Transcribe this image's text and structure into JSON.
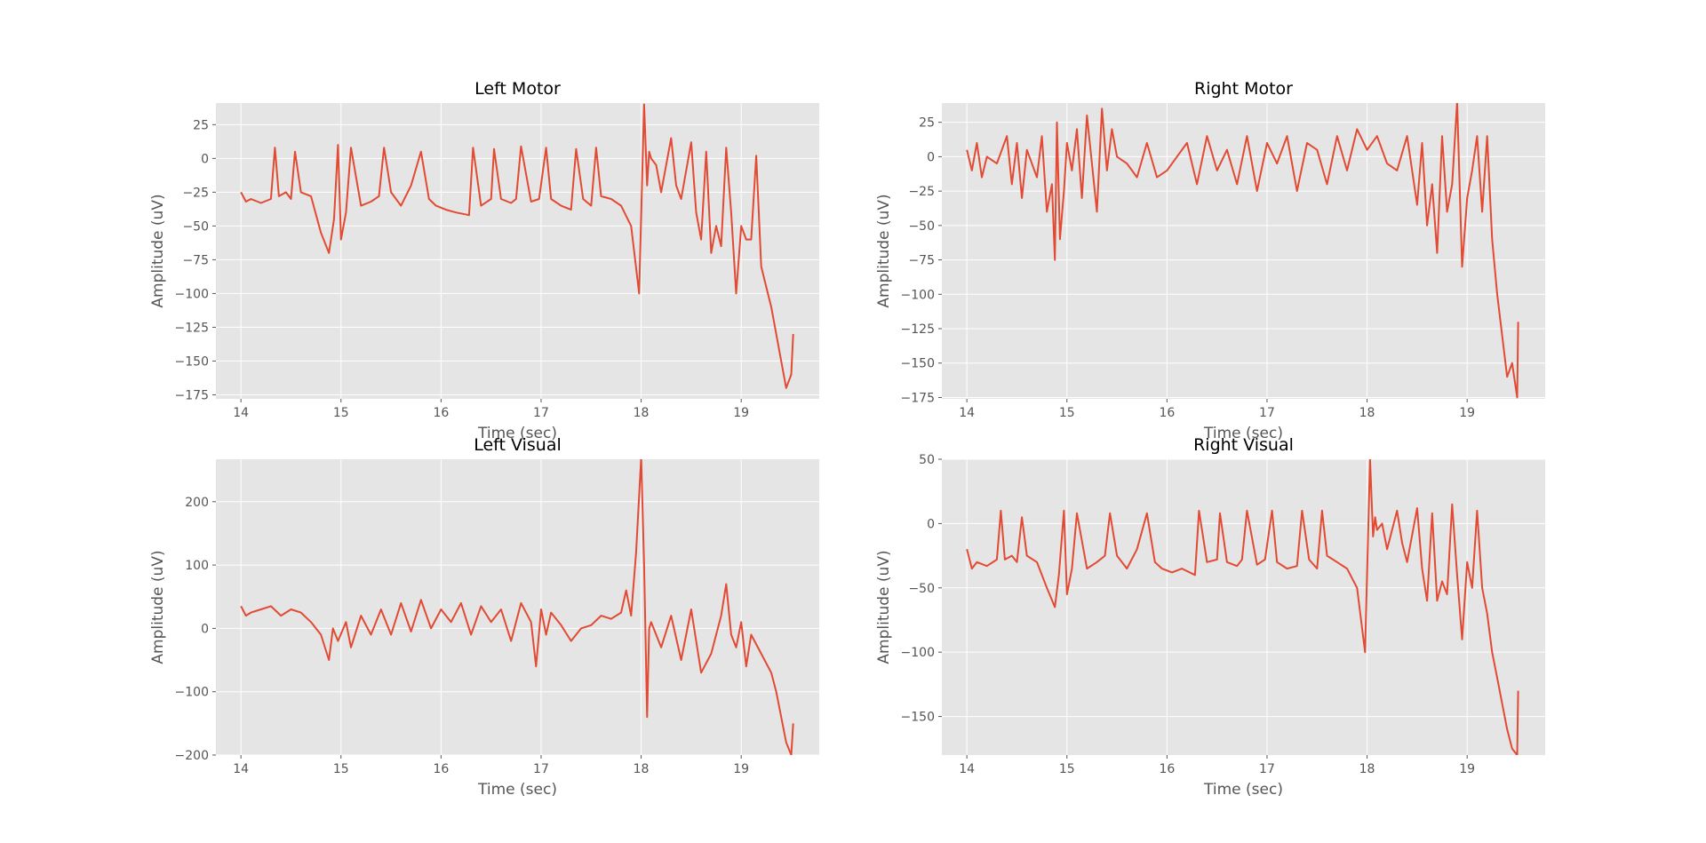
{
  "figure": {
    "background": "#ffffff",
    "axes_facecolor": "#e5e5e5",
    "grid_color": "#ffffff",
    "line_color": "#e24a33",
    "tick_color": "#555555"
  },
  "chart_data": [
    {
      "type": "line",
      "title": "Left Motor",
      "xlabel": "Time (sec)",
      "ylabel": "Amplitude (uV)",
      "xlim": [
        13.75,
        19.78
      ],
      "ylim": [
        -178,
        41
      ],
      "xticks": [
        14,
        15,
        16,
        17,
        18,
        19
      ],
      "yticks": [
        -175,
        -150,
        -125,
        -100,
        -75,
        -50,
        -25,
        0,
        25
      ],
      "grid": true,
      "series": [
        {
          "color": "#e24a33",
          "x": [
            14.0,
            14.05,
            14.1,
            14.2,
            14.3,
            14.34,
            14.38,
            14.45,
            14.5,
            14.54,
            14.6,
            14.7,
            14.8,
            14.88,
            14.93,
            14.97,
            15.0,
            15.05,
            15.1,
            15.2,
            15.3,
            15.38,
            15.43,
            15.5,
            15.6,
            15.7,
            15.8,
            15.88,
            15.95,
            16.05,
            16.15,
            16.28,
            16.32,
            16.4,
            16.5,
            16.53,
            16.6,
            16.7,
            16.75,
            16.8,
            16.9,
            16.98,
            17.05,
            17.1,
            17.2,
            17.3,
            17.35,
            17.42,
            17.5,
            17.55,
            17.6,
            17.7,
            17.8,
            17.9,
            17.98,
            18.03,
            18.06,
            18.08,
            18.1,
            18.15,
            18.2,
            18.3,
            18.35,
            18.4,
            18.5,
            18.55,
            18.6,
            18.65,
            18.7,
            18.75,
            18.8,
            18.85,
            18.9,
            18.95,
            19.0,
            19.05,
            19.1,
            19.15,
            19.2,
            19.25,
            19.3,
            19.35,
            19.4,
            19.45,
            19.5,
            19.52
          ],
          "y": [
            -25,
            -32,
            -30,
            -33,
            -30,
            8,
            -28,
            -25,
            -30,
            5,
            -25,
            -28,
            -55,
            -70,
            -45,
            10,
            -60,
            -40,
            8,
            -35,
            -32,
            -28,
            8,
            -25,
            -35,
            -20,
            5,
            -30,
            -35,
            -38,
            -40,
            -42,
            8,
            -35,
            -30,
            7,
            -30,
            -33,
            -30,
            9,
            -32,
            -30,
            8,
            -30,
            -35,
            -38,
            7,
            -30,
            -35,
            8,
            -28,
            -30,
            -35,
            -50,
            -100,
            40,
            -20,
            5,
            0,
            -5,
            -25,
            15,
            -20,
            -30,
            12,
            -40,
            -60,
            5,
            -70,
            -50,
            -65,
            8,
            -40,
            -100,
            -50,
            -60,
            -60,
            2,
            -80,
            -95,
            -110,
            -130,
            -150,
            -170,
            -160,
            -130
          ]
        }
      ]
    },
    {
      "type": "line",
      "title": "Right Motor",
      "xlabel": "Time (sec)",
      "ylabel": "Amplitude (uV)",
      "xlim": [
        13.75,
        19.78
      ],
      "ylim": [
        -176,
        39
      ],
      "xticks": [
        14,
        15,
        16,
        17,
        18,
        19
      ],
      "yticks": [
        -175,
        -150,
        -125,
        -100,
        -75,
        -50,
        -25,
        0,
        25
      ],
      "grid": true,
      "series": [
        {
          "color": "#e24a33",
          "x": [
            14.0,
            14.05,
            14.1,
            14.15,
            14.2,
            14.3,
            14.4,
            14.45,
            14.5,
            14.55,
            14.6,
            14.7,
            14.75,
            14.8,
            14.85,
            14.88,
            14.9,
            14.93,
            14.97,
            15.0,
            15.05,
            15.1,
            15.15,
            15.2,
            15.3,
            15.35,
            15.4,
            15.45,
            15.5,
            15.6,
            15.7,
            15.8,
            15.9,
            16.0,
            16.1,
            16.2,
            16.3,
            16.4,
            16.5,
            16.6,
            16.7,
            16.8,
            16.9,
            17.0,
            17.1,
            17.2,
            17.3,
            17.4,
            17.5,
            17.6,
            17.7,
            17.8,
            17.9,
            18.0,
            18.1,
            18.2,
            18.3,
            18.4,
            18.5,
            18.55,
            18.6,
            18.65,
            18.7,
            18.75,
            18.8,
            18.85,
            18.9,
            18.95,
            19.0,
            19.05,
            19.1,
            19.15,
            19.2,
            19.25,
            19.3,
            19.35,
            19.4,
            19.45,
            19.5,
            19.51
          ],
          "y": [
            5,
            -10,
            10,
            -15,
            0,
            -5,
            15,
            -20,
            10,
            -30,
            5,
            -15,
            15,
            -40,
            -20,
            -75,
            25,
            -60,
            -25,
            10,
            -10,
            20,
            -30,
            30,
            -40,
            35,
            -10,
            20,
            0,
            -5,
            -15,
            10,
            -15,
            -10,
            0,
            10,
            -20,
            15,
            -10,
            5,
            -20,
            15,
            -25,
            10,
            -5,
            15,
            -25,
            10,
            5,
            -20,
            15,
            -10,
            20,
            5,
            15,
            -5,
            -10,
            15,
            -35,
            10,
            -50,
            -20,
            -70,
            15,
            -40,
            -20,
            40,
            -80,
            -30,
            -10,
            15,
            -40,
            15,
            -60,
            -100,
            -130,
            -160,
            -150,
            -175,
            -120
          ]
        }
      ]
    },
    {
      "type": "line",
      "title": "Left Visual",
      "xlabel": "Time (sec)",
      "ylabel": "Amplitude (uV)",
      "xlim": [
        13.75,
        19.78
      ],
      "ylim": [
        -200,
        267
      ],
      "xticks": [
        14,
        15,
        16,
        17,
        18,
        19
      ],
      "yticks": [
        -200,
        -100,
        0,
        100,
        200
      ],
      "grid": true,
      "series": [
        {
          "color": "#e24a33",
          "x": [
            14.0,
            14.05,
            14.1,
            14.2,
            14.3,
            14.4,
            14.5,
            14.6,
            14.7,
            14.8,
            14.88,
            14.92,
            14.97,
            15.05,
            15.1,
            15.2,
            15.3,
            15.4,
            15.5,
            15.6,
            15.7,
            15.8,
            15.9,
            16.0,
            16.1,
            16.2,
            16.3,
            16.4,
            16.5,
            16.6,
            16.7,
            16.8,
            16.9,
            16.95,
            17.0,
            17.05,
            17.1,
            17.2,
            17.3,
            17.4,
            17.5,
            17.6,
            17.7,
            17.8,
            17.85,
            17.9,
            17.95,
            18.0,
            18.03,
            18.06,
            18.08,
            18.1,
            18.2,
            18.3,
            18.4,
            18.5,
            18.6,
            18.7,
            18.8,
            18.85,
            18.9,
            18.95,
            19.0,
            19.05,
            19.1,
            19.2,
            19.3,
            19.35,
            19.4,
            19.45,
            19.5,
            19.52
          ],
          "y": [
            35,
            20,
            25,
            30,
            35,
            20,
            30,
            25,
            10,
            -10,
            -50,
            0,
            -20,
            10,
            -30,
            20,
            -10,
            30,
            -10,
            40,
            -5,
            45,
            0,
            30,
            10,
            40,
            -10,
            35,
            10,
            30,
            -20,
            40,
            10,
            -60,
            30,
            -10,
            25,
            5,
            -20,
            0,
            5,
            20,
            15,
            25,
            60,
            20,
            120,
            270,
            100,
            -140,
            0,
            10,
            -30,
            20,
            -50,
            30,
            -70,
            -40,
            20,
            70,
            -10,
            -30,
            10,
            -60,
            -10,
            -40,
            -70,
            -100,
            -140,
            -180,
            -200,
            -150
          ]
        }
      ]
    },
    {
      "type": "line",
      "title": "Right Visual",
      "xlabel": "Time (sec)",
      "ylabel": "Amplitude (uV)",
      "xlim": [
        13.75,
        19.78
      ],
      "ylim": [
        -180,
        50
      ],
      "xticks": [
        14,
        15,
        16,
        17,
        18,
        19
      ],
      "yticks": [
        -150,
        -100,
        -50,
        0,
        50
      ],
      "grid": true,
      "series": [
        {
          "color": "#e24a33",
          "x": [
            14.0,
            14.05,
            14.1,
            14.2,
            14.3,
            14.34,
            14.38,
            14.45,
            14.5,
            14.55,
            14.6,
            14.7,
            14.8,
            14.88,
            14.92,
            14.97,
            15.0,
            15.05,
            15.1,
            15.2,
            15.3,
            15.38,
            15.43,
            15.5,
            15.6,
            15.7,
            15.8,
            15.88,
            15.95,
            16.05,
            16.15,
            16.28,
            16.32,
            16.4,
            16.5,
            16.53,
            16.6,
            16.7,
            16.75,
            16.8,
            16.9,
            16.98,
            17.05,
            17.1,
            17.2,
            17.3,
            17.35,
            17.42,
            17.5,
            17.55,
            17.6,
            17.7,
            17.8,
            17.9,
            17.98,
            18.03,
            18.06,
            18.08,
            18.1,
            18.15,
            18.2,
            18.3,
            18.35,
            18.4,
            18.5,
            18.55,
            18.6,
            18.65,
            18.7,
            18.75,
            18.8,
            18.85,
            18.9,
            18.95,
            19.0,
            19.05,
            19.1,
            19.15,
            19.2,
            19.25,
            19.3,
            19.35,
            19.4,
            19.45,
            19.5,
            19.51
          ],
          "y": [
            -20,
            -35,
            -30,
            -33,
            -28,
            10,
            -28,
            -25,
            -30,
            5,
            -25,
            -30,
            -50,
            -65,
            -40,
            10,
            -55,
            -35,
            8,
            -35,
            -30,
            -25,
            8,
            -25,
            -35,
            -20,
            8,
            -30,
            -35,
            -38,
            -35,
            -40,
            10,
            -30,
            -28,
            8,
            -30,
            -33,
            -28,
            10,
            -32,
            -28,
            10,
            -30,
            -35,
            -33,
            10,
            -28,
            -35,
            10,
            -25,
            -30,
            -35,
            -50,
            -100,
            50,
            -10,
            5,
            -5,
            0,
            -20,
            10,
            -15,
            -30,
            12,
            -35,
            -60,
            8,
            -60,
            -45,
            -55,
            15,
            -40,
            -90,
            -30,
            -50,
            10,
            -50,
            -70,
            -100,
            -120,
            -140,
            -160,
            -175,
            -180,
            -130
          ]
        }
      ]
    }
  ]
}
